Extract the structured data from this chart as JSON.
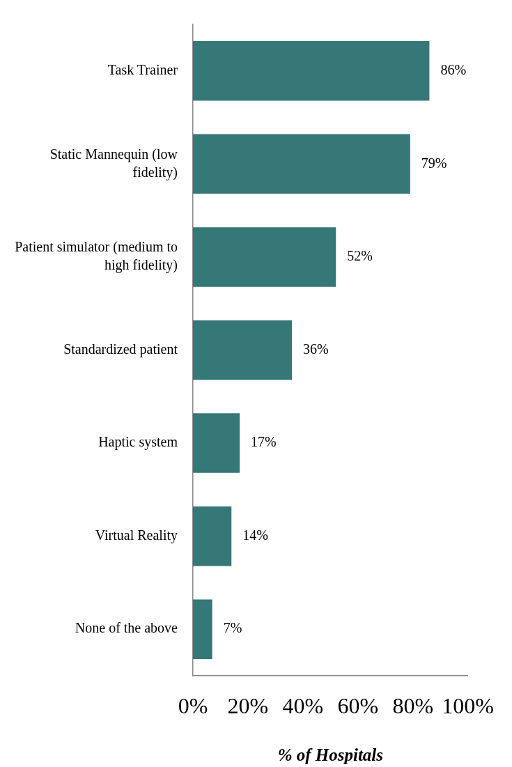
{
  "chart_data": {
    "type": "bar",
    "orientation": "horizontal",
    "xlabel": "% of Hospitals",
    "categories": [
      "Task Trainer",
      "Static Mannequin (low fidelity)",
      "Patient simulator (medium to high fidelity)",
      "Standardized patient",
      "Haptic system",
      "Virtual Reality",
      "None of the above"
    ],
    "values": [
      86,
      79,
      52,
      36,
      17,
      14,
      7
    ],
    "value_labels": [
      "86%",
      "79%",
      "52%",
      "36%",
      "17%",
      "14%",
      "7%"
    ],
    "color": "#367778",
    "xlim": [
      0,
      100
    ],
    "xticks": [
      {
        "value": 0,
        "label": "0%"
      },
      {
        "value": 20,
        "label": "20%"
      },
      {
        "value": 40,
        "label": "40%"
      },
      {
        "value": 60,
        "label": "60%"
      },
      {
        "value": 80,
        "label": "80%"
      },
      {
        "value": 100,
        "label": "100%"
      }
    ],
    "grid": false,
    "legend": false
  }
}
